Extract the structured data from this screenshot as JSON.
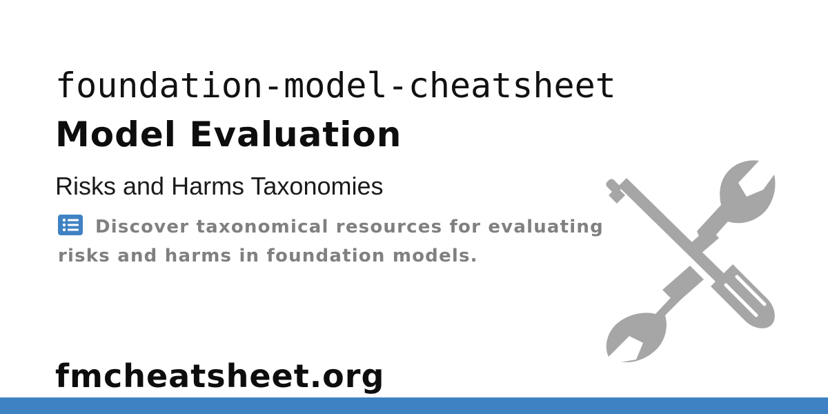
{
  "repo_name": "foundation-model-cheatsheet",
  "section_title": "Model Evaluation",
  "subsection_title": "Risks and Harms Taxonomies",
  "description": "Discover taxonomical resources for evaluating risks and harms in foundation models.",
  "description_icon": "list-icon",
  "illustration_icon": "wrench-screwdriver-icon",
  "site_url": "fmcheatsheet.org",
  "colors": {
    "accent_bar": "#3f82c3",
    "list_icon": "#3f82c3",
    "illustration": "#a6a6a6",
    "description_text": "#808080",
    "heading_text": "#0d0d0d"
  }
}
